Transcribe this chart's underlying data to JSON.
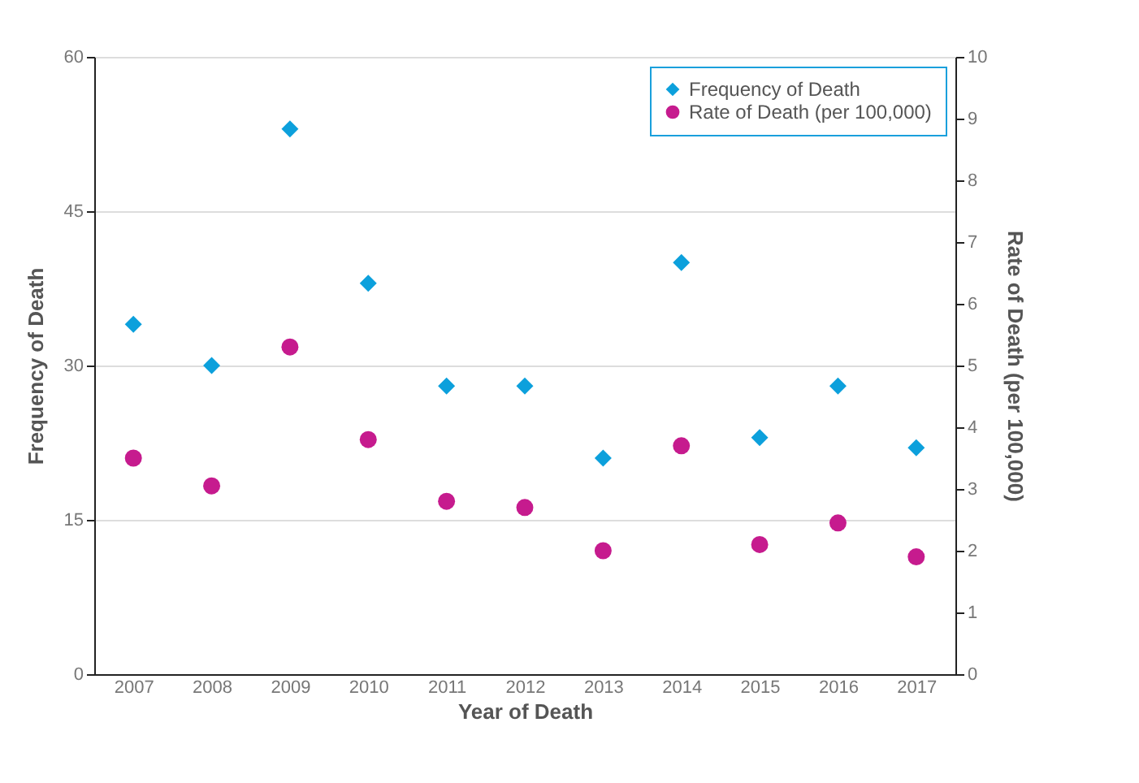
{
  "chart_data": {
    "type": "scatter",
    "xlabel": "Year of Death",
    "ylabel": "Frequency of Death",
    "y2label": "Rate of Death (per 100,000)",
    "categories": [
      "2007",
      "2008",
      "2009",
      "2010",
      "2011",
      "2012",
      "2013",
      "2014",
      "2015",
      "2016",
      "2017"
    ],
    "series": [
      {
        "name": "Frequency of Death",
        "color": "#0ca0dc",
        "marker": "diamond",
        "values": [
          34,
          30,
          53,
          38,
          28,
          28,
          21,
          40,
          23,
          28,
          22
        ]
      },
      {
        "name": "Rate of Death (per 100,000)",
        "color": "#c61b8e",
        "marker": "circle",
        "axis": "y2",
        "values": [
          3.5,
          3.05,
          5.3,
          3.8,
          2.8,
          2.7,
          2.0,
          3.7,
          2.1,
          2.45,
          1.9
        ]
      }
    ],
    "ylim": [
      0,
      60
    ],
    "yticks": [
      0,
      15,
      30,
      45,
      60
    ],
    "y2lim": [
      0,
      10
    ],
    "y2ticks": [
      0,
      1,
      2,
      3,
      4,
      5,
      6,
      7,
      8,
      9,
      10
    ],
    "grid": "y",
    "legend": "top right"
  }
}
